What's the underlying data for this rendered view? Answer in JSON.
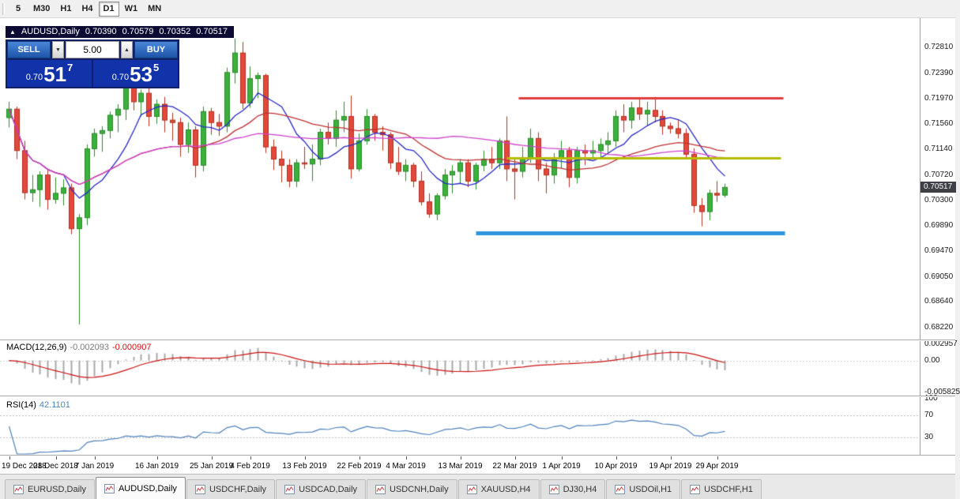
{
  "toolbar": {
    "timeframes": [
      "5",
      "M30",
      "H1",
      "H4",
      "D1",
      "W1",
      "MN"
    ],
    "active": "D1"
  },
  "chart": {
    "title": {
      "collapse_icon": "▲",
      "symbol": "AUDUSD,Daily",
      "open": "0.70390",
      "high": "0.70579",
      "low": "0.70352",
      "close": "0.70517"
    },
    "one_click": {
      "sell_label": "SELL",
      "buy_label": "BUY",
      "volume": "5.00",
      "spin_down_icon": "▼",
      "spin_up_icon": "▲",
      "sell_price": {
        "prefix": "0.70",
        "big": "51",
        "sup": "7"
      },
      "buy_price": {
        "prefix": "0.70",
        "big": "53",
        "sup": "5"
      }
    },
    "current_price": "0.70517"
  },
  "indicators": {
    "macd": {
      "name": "MACD(12,26,9)",
      "value_main": "-0.002093",
      "value_signal": "-0.000907",
      "scale": [
        "0.002957",
        "0.00",
        "-0.005825"
      ]
    },
    "rsi": {
      "name": "RSI(14)",
      "value": "42.1101",
      "scale": [
        "100",
        "70",
        "30"
      ]
    }
  },
  "tabs": {
    "active_index": 1,
    "items": [
      {
        "label": "EURUSD,Daily"
      },
      {
        "label": "AUDUSD,Daily"
      },
      {
        "label": "USDCHF,Daily"
      },
      {
        "label": "USDCAD,Daily"
      },
      {
        "label": "USDCNH,Daily"
      },
      {
        "label": "XAUUSD,H4"
      },
      {
        "label": "DJ30,H4"
      },
      {
        "label": "USDOil,H1"
      },
      {
        "label": "USDCHF,H1"
      }
    ]
  },
  "chart_data": {
    "type": "candlestick",
    "symbol": "AUDUSD",
    "timeframe": "Daily",
    "title": "AUDUSD,Daily 0.70390 0.70579 0.70352 0.70517",
    "y_axis": {
      "min": 0.6805,
      "max": 0.732,
      "ticks": [
        "0.72810",
        "0.72390",
        "0.71970",
        "0.71560",
        "0.71140",
        "0.70720",
        "0.70300",
        "0.69890",
        "0.69470",
        "0.69050",
        "0.68640",
        "0.68220"
      ]
    },
    "x_ticks": [
      {
        "label": "19 Dec 2018",
        "i": 0
      },
      {
        "label": "28 Dec 2018",
        "i": 6
      },
      {
        "label": "7 Jan 2019",
        "i": 11
      },
      {
        "label": "16 Jan 2019",
        "i": 19
      },
      {
        "label": "25 Jan 2019",
        "i": 26
      },
      {
        "label": "4 Feb 2019",
        "i": 31
      },
      {
        "label": "13 Feb 2019",
        "i": 38
      },
      {
        "label": "22 Feb 2019",
        "i": 45
      },
      {
        "label": "4 Mar 2019",
        "i": 51
      },
      {
        "label": "13 Mar 2019",
        "i": 58
      },
      {
        "label": "22 Mar 2019",
        "i": 65
      },
      {
        "label": "1 Apr 2019",
        "i": 71
      },
      {
        "label": "10 Apr 2019",
        "i": 78
      },
      {
        "label": "19 Apr 2019",
        "i": 85
      },
      {
        "label": "29 Apr 2019",
        "i": 91
      }
    ],
    "candles": [
      [
        0.7166,
        0.7192,
        0.715,
        0.718
      ],
      [
        0.718,
        0.7184,
        0.7098,
        0.7112
      ],
      [
        0.7112,
        0.7128,
        0.7032,
        0.7043
      ],
      [
        0.7043,
        0.7072,
        0.7028,
        0.7048
      ],
      [
        0.7048,
        0.7078,
        0.702,
        0.7072
      ],
      [
        0.7072,
        0.708,
        0.7015,
        0.7032
      ],
      [
        0.7032,
        0.7068,
        0.7025,
        0.7042
      ],
      [
        0.7042,
        0.7065,
        0.7022,
        0.7051
      ],
      [
        0.7051,
        0.7058,
        0.6975,
        0.6984
      ],
      [
        0.6984,
        0.7008,
        0.6827,
        0.7002
      ],
      [
        0.7002,
        0.7122,
        0.699,
        0.7115
      ],
      [
        0.7115,
        0.7148,
        0.7102,
        0.714
      ],
      [
        0.714,
        0.7152,
        0.711,
        0.7145
      ],
      [
        0.7145,
        0.7176,
        0.7132,
        0.717
      ],
      [
        0.717,
        0.7188,
        0.7142,
        0.718
      ],
      [
        0.718,
        0.7228,
        0.7162,
        0.7218
      ],
      [
        0.7218,
        0.7232,
        0.7178,
        0.7192
      ],
      [
        0.7192,
        0.7212,
        0.7168,
        0.7206
      ],
      [
        0.7206,
        0.7216,
        0.7152,
        0.7168
      ],
      [
        0.7168,
        0.7196,
        0.7156,
        0.7188
      ],
      [
        0.7188,
        0.72,
        0.7142,
        0.7162
      ],
      [
        0.7162,
        0.7174,
        0.7128,
        0.7158
      ],
      [
        0.7158,
        0.7166,
        0.7102,
        0.7122
      ],
      [
        0.7122,
        0.7158,
        0.7108,
        0.7146
      ],
      [
        0.7146,
        0.7152,
        0.7068,
        0.7088
      ],
      [
        0.7088,
        0.7184,
        0.7078,
        0.7176
      ],
      [
        0.7176,
        0.7182,
        0.7138,
        0.7158
      ],
      [
        0.7158,
        0.7172,
        0.7136,
        0.7152
      ],
      [
        0.7152,
        0.7248,
        0.7142,
        0.724
      ],
      [
        0.724,
        0.7296,
        0.7222,
        0.7272
      ],
      [
        0.7272,
        0.729,
        0.718,
        0.719
      ],
      [
        0.719,
        0.725,
        0.7182,
        0.723
      ],
      [
        0.723,
        0.724,
        0.7198,
        0.7235
      ],
      [
        0.7235,
        0.7238,
        0.7108,
        0.7118
      ],
      [
        0.7118,
        0.713,
        0.708,
        0.7098
      ],
      [
        0.7098,
        0.7112,
        0.706,
        0.7088
      ],
      [
        0.7088,
        0.7098,
        0.7052,
        0.7062
      ],
      [
        0.7062,
        0.7098,
        0.7052,
        0.7092
      ],
      [
        0.7092,
        0.7118,
        0.7082,
        0.709
      ],
      [
        0.709,
        0.7122,
        0.7062,
        0.7098
      ],
      [
        0.7098,
        0.7148,
        0.7088,
        0.7142
      ],
      [
        0.7142,
        0.7158,
        0.7122,
        0.7132
      ],
      [
        0.7132,
        0.7178,
        0.7118,
        0.7162
      ],
      [
        0.7162,
        0.7192,
        0.7142,
        0.7168
      ],
      [
        0.7168,
        0.7202,
        0.7066,
        0.7082
      ],
      [
        0.7082,
        0.714,
        0.7078,
        0.7128
      ],
      [
        0.7128,
        0.718,
        0.7122,
        0.7168
      ],
      [
        0.7168,
        0.7172,
        0.7128,
        0.7142
      ],
      [
        0.7142,
        0.7152,
        0.7112,
        0.7138
      ],
      [
        0.7138,
        0.7142,
        0.7082,
        0.7092
      ],
      [
        0.7092,
        0.7118,
        0.7072,
        0.7078
      ],
      [
        0.7078,
        0.7098,
        0.7062,
        0.7088
      ],
      [
        0.7088,
        0.7092,
        0.7052,
        0.7062
      ],
      [
        0.7062,
        0.7078,
        0.7022,
        0.7028
      ],
      [
        0.7028,
        0.7042,
        0.7002,
        0.7008
      ],
      [
        0.7008,
        0.7042,
        0.6998,
        0.7038
      ],
      [
        0.7038,
        0.7082,
        0.7032,
        0.7072
      ],
      [
        0.7072,
        0.7088,
        0.7042,
        0.7078
      ],
      [
        0.7078,
        0.7098,
        0.7058,
        0.7092
      ],
      [
        0.7092,
        0.7098,
        0.7052,
        0.7062
      ],
      [
        0.7062,
        0.7092,
        0.7048,
        0.7088
      ],
      [
        0.7088,
        0.7112,
        0.7078,
        0.7098
      ],
      [
        0.7098,
        0.7118,
        0.7082,
        0.7092
      ],
      [
        0.7092,
        0.7132,
        0.7082,
        0.7128
      ],
      [
        0.7128,
        0.7168,
        0.7062,
        0.7082
      ],
      [
        0.7082,
        0.7098,
        0.7032,
        0.7078
      ],
      [
        0.7078,
        0.7118,
        0.7068,
        0.7098
      ],
      [
        0.7098,
        0.7148,
        0.7092,
        0.7132
      ],
      [
        0.7132,
        0.7142,
        0.7062,
        0.7082
      ],
      [
        0.7082,
        0.7092,
        0.7042,
        0.7072
      ],
      [
        0.7072,
        0.7108,
        0.7058,
        0.7098
      ],
      [
        0.7098,
        0.7128,
        0.7082,
        0.7112
      ],
      [
        0.7112,
        0.7118,
        0.7052,
        0.7068
      ],
      [
        0.7068,
        0.7118,
        0.7058,
        0.7112
      ],
      [
        0.7112,
        0.7122,
        0.7088,
        0.7108
      ],
      [
        0.7108,
        0.7128,
        0.7098,
        0.7112
      ],
      [
        0.7112,
        0.7132,
        0.7098,
        0.7122
      ],
      [
        0.7122,
        0.7142,
        0.7108,
        0.7128
      ],
      [
        0.7128,
        0.7178,
        0.7118,
        0.7168
      ],
      [
        0.7168,
        0.7188,
        0.7142,
        0.7162
      ],
      [
        0.7162,
        0.7192,
        0.7148,
        0.7182
      ],
      [
        0.7182,
        0.7198,
        0.7162,
        0.7172
      ],
      [
        0.7172,
        0.7192,
        0.7152,
        0.7178
      ],
      [
        0.7178,
        0.72,
        0.7158,
        0.7168
      ],
      [
        0.7168,
        0.7178,
        0.7138,
        0.7152
      ],
      [
        0.7152,
        0.7158,
        0.714,
        0.7148
      ],
      [
        0.7148,
        0.7162,
        0.7132,
        0.714
      ],
      [
        0.714,
        0.7148,
        0.7098,
        0.7106
      ],
      [
        0.7106,
        0.7116,
        0.701,
        0.7022
      ],
      [
        0.7022,
        0.7034,
        0.6988,
        0.7012
      ],
      [
        0.7012,
        0.7048,
        0.6998,
        0.7042
      ],
      [
        0.7042,
        0.7062,
        0.7028,
        0.7039
      ],
      [
        0.7039,
        0.70579,
        0.70352,
        0.70517
      ]
    ],
    "colors": {
      "up": "#3bb13b",
      "up_border": "#2a8a2a",
      "down": "#e2483c",
      "down_border": "#b5301f",
      "background": "#ffffff"
    },
    "mas": [
      {
        "period": 8,
        "color": "#2929c8"
      },
      {
        "period": 24,
        "color": "#c03232"
      },
      {
        "period": 48,
        "color": "#cf42cf"
      }
    ],
    "hlines": [
      {
        "price": 0.7199,
        "color": "#e23b3b",
        "width": 3,
        "from": 65.5,
        "to": 99.5
      },
      {
        "price": 0.71,
        "color": "#b4bd00",
        "width": 3,
        "from": 64.0,
        "to": 99.2
      },
      {
        "price": 0.6977,
        "color": "#2e94dd",
        "width": 5,
        "from": 60.0,
        "to": 99.7
      }
    ],
    "macd": {
      "fast": 12,
      "slow": 26,
      "signal": 9,
      "range": [
        -0.005825,
        0.002957
      ],
      "hist_color": "#a9a9a9",
      "signal_color": "#cc1111",
      "display_main": -0.002093,
      "display_signal": -0.000907
    },
    "rsi": {
      "period": 14,
      "color": "#4f81bd",
      "levels": [
        70,
        30
      ],
      "display": 42.1101
    }
  }
}
